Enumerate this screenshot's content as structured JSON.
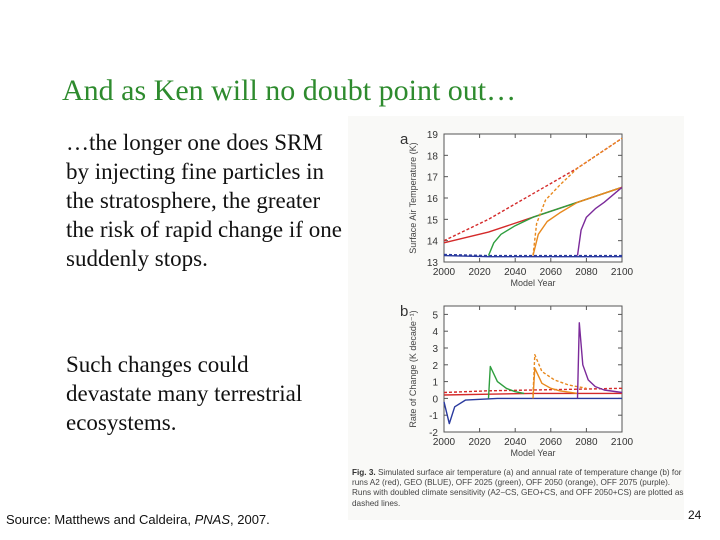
{
  "slide": {
    "title": "And as Ken will no doubt point out…",
    "bullet1": "…the longer one does SRM by injecting fine particles in the stratosphere, the greater the risk of rapid change if one suddenly stops.",
    "bullet2": "Such changes could devastate many terrestrial ecosystems.",
    "source_prefix": "Source: Matthews and Caldeira, ",
    "source_journal": "PNAS",
    "source_suffix": ", 2007.",
    "page_number": "24"
  },
  "figure": {
    "caption_label": "Fig. 3.",
    "caption_text": "Simulated surface air temperature (a) and annual rate of temperature change (b) for runs A2 (red), GEO (BLUE), OFF 2025 (green), OFF 2050 (orange), OFF 2075 (purple). Runs with doubled climate sensitivity (A2−CS, GEO+CS, and OFF 2050+CS) are plotted as dashed lines."
  },
  "chart_data": [
    {
      "type": "line",
      "panel_label": "a",
      "xlabel": "Model Year",
      "ylabel": "Surface Air Temperature (K)",
      "x_ticks": [
        "2000",
        "2020",
        "2040",
        "2060",
        "2080",
        "2100"
      ],
      "y_ticks": [
        "13",
        "14",
        "15",
        "16",
        "17",
        "18",
        "19"
      ],
      "xlim": [
        2000,
        2100
      ],
      "ylim": [
        13,
        19
      ],
      "series": [
        {
          "name": "A2",
          "color": "#d42a2a",
          "dashed": false,
          "x": [
            2000,
            2025,
            2050,
            2075,
            2100
          ],
          "y": [
            13.9,
            14.4,
            15.1,
            15.8,
            16.5
          ]
        },
        {
          "name": "A2-CS",
          "color": "#d42a2a",
          "dashed": true,
          "x": [
            2000,
            2025,
            2050,
            2075,
            2100
          ],
          "y": [
            14.0,
            15.0,
            16.2,
            17.4,
            18.8
          ]
        },
        {
          "name": "GEO",
          "color": "#2a3a9e",
          "dashed": false,
          "x": [
            2000,
            2025,
            2050,
            2075,
            2100
          ],
          "y": [
            13.3,
            13.25,
            13.25,
            13.25,
            13.25
          ]
        },
        {
          "name": "GEO+CS",
          "color": "#2a3a9e",
          "dashed": true,
          "x": [
            2000,
            2025,
            2050,
            2075,
            2100
          ],
          "y": [
            13.35,
            13.3,
            13.3,
            13.3,
            13.3
          ]
        },
        {
          "name": "OFF 2025",
          "color": "#2e9e3e",
          "dashed": false,
          "x": [
            2025,
            2028,
            2032,
            2040,
            2050,
            2075,
            2100
          ],
          "y": [
            13.3,
            13.9,
            14.3,
            14.7,
            15.1,
            15.8,
            16.5
          ]
        },
        {
          "name": "OFF 2050",
          "color": "#e8891e",
          "dashed": false,
          "x": [
            2050,
            2053,
            2058,
            2065,
            2075,
            2100
          ],
          "y": [
            13.3,
            14.3,
            14.9,
            15.3,
            15.8,
            16.5
          ]
        },
        {
          "name": "OFF 2050+CS",
          "color": "#e8891e",
          "dashed": true,
          "x": [
            2050,
            2052,
            2057,
            2065,
            2075,
            2100
          ],
          "y": [
            13.3,
            14.8,
            15.9,
            16.6,
            17.4,
            18.8
          ]
        },
        {
          "name": "OFF 2075",
          "color": "#7b2a9a",
          "dashed": false,
          "x": [
            2075,
            2077,
            2080,
            2085,
            2090,
            2100
          ],
          "y": [
            13.3,
            14.5,
            15.1,
            15.5,
            15.8,
            16.5
          ]
        }
      ]
    },
    {
      "type": "line",
      "panel_label": "b",
      "xlabel": "Model Year",
      "ylabel": "Rate of Change (K decade⁻¹)",
      "x_ticks": [
        "2000",
        "2020",
        "2040",
        "2060",
        "2080",
        "2100"
      ],
      "y_ticks": [
        "-2",
        "-1",
        "0",
        "1",
        "2",
        "3",
        "4",
        "5"
      ],
      "xlim": [
        2000,
        2100
      ],
      "ylim": [
        -2,
        5.5
      ],
      "series": [
        {
          "name": "A2",
          "color": "#d42a2a",
          "dashed": false,
          "x": [
            2000,
            2025,
            2050,
            2075,
            2100
          ],
          "y": [
            0.2,
            0.25,
            0.3,
            0.3,
            0.3
          ]
        },
        {
          "name": "A2-CS",
          "color": "#d42a2a",
          "dashed": true,
          "x": [
            2000,
            2025,
            2050,
            2075,
            2100
          ],
          "y": [
            0.35,
            0.45,
            0.5,
            0.55,
            0.6
          ]
        },
        {
          "name": "GEO",
          "color": "#2a3a9e",
          "dashed": false,
          "x": [
            2000,
            2003,
            2006,
            2012,
            2030,
            2060,
            2100
          ],
          "y": [
            -0.2,
            -1.5,
            -0.5,
            -0.1,
            0,
            0,
            0
          ]
        },
        {
          "name": "OFF 2025",
          "color": "#2e9e3e",
          "dashed": false,
          "x": [
            2025,
            2026,
            2030,
            2035,
            2040,
            2045
          ],
          "y": [
            0,
            1.9,
            1.0,
            0.6,
            0.4,
            0.3
          ]
        },
        {
          "name": "OFF 2050",
          "color": "#e8891e",
          "dashed": false,
          "x": [
            2050,
            2051,
            2055,
            2060,
            2065,
            2075
          ],
          "y": [
            0,
            1.8,
            0.9,
            0.6,
            0.45,
            0.3
          ]
        },
        {
          "name": "OFF 2050+CS",
          "color": "#e8891e",
          "dashed": true,
          "x": [
            2050,
            2051,
            2055,
            2062,
            2070,
            2080
          ],
          "y": [
            0.2,
            2.6,
            1.6,
            1.1,
            0.8,
            0.6
          ]
        },
        {
          "name": "OFF 2075",
          "color": "#7b2a9a",
          "dashed": false,
          "x": [
            2075,
            2076,
            2078,
            2081,
            2085,
            2090,
            2100
          ],
          "y": [
            0,
            4.5,
            2.0,
            1.1,
            0.7,
            0.5,
            0.35
          ]
        }
      ]
    }
  ]
}
